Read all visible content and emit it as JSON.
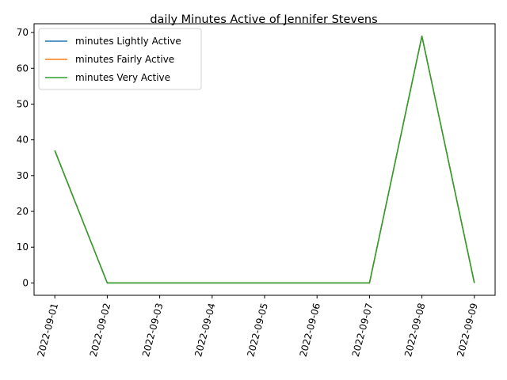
{
  "chart_data": {
    "type": "line",
    "title": "daily Minutes Active of Jennifer Stevens",
    "xlabel": "",
    "ylabel": "",
    "categories": [
      "2022-09-01",
      "2022-09-02",
      "2022-09-03",
      "2022-09-04",
      "2022-09-05",
      "2022-09-06",
      "2022-09-07",
      "2022-09-08",
      "2022-09-09"
    ],
    "series": [
      {
        "name": "minutes Lightly Active",
        "color": "#1f77b4",
        "values": [
          37,
          0,
          0,
          0,
          0,
          0,
          0,
          69,
          0
        ]
      },
      {
        "name": "minutes Fairly Active",
        "color": "#ff7f0e",
        "values": [
          37,
          0,
          0,
          0,
          0,
          0,
          0,
          69,
          0
        ]
      },
      {
        "name": "minutes Very Active",
        "color": "#2ca02c",
        "values": [
          37,
          0,
          0,
          0,
          0,
          0,
          0,
          69,
          0
        ]
      }
    ],
    "ylim": [
      -3.45,
      72.45
    ],
    "yticks": [
      0,
      10,
      20,
      30,
      40,
      50,
      60,
      70
    ],
    "grid": false,
    "legend": "upper-left"
  }
}
